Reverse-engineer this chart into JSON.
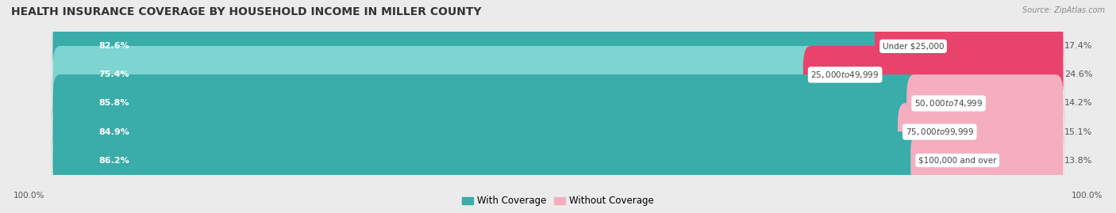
{
  "title": "HEALTH INSURANCE COVERAGE BY HOUSEHOLD INCOME IN MILLER COUNTY",
  "source": "Source: ZipAtlas.com",
  "categories": [
    "Under $25,000",
    "$25,000 to $49,999",
    "$50,000 to $74,999",
    "$75,000 to $99,999",
    "$100,000 and over"
  ],
  "with_coverage": [
    82.6,
    75.4,
    85.8,
    84.9,
    86.2
  ],
  "without_coverage": [
    17.4,
    24.6,
    14.2,
    15.1,
    13.8
  ],
  "color_with_dark": "#3aacaa",
  "color_with_light": "#7dd4d0",
  "color_without_dark": "#e8436a",
  "color_without_light": "#f4aec0",
  "background_color": "#ebebeb",
  "row_bg_color": "#f7f7f7",
  "title_fontsize": 10,
  "label_fontsize": 8,
  "legend_fontsize": 8.5,
  "footer_label": "100.0%"
}
